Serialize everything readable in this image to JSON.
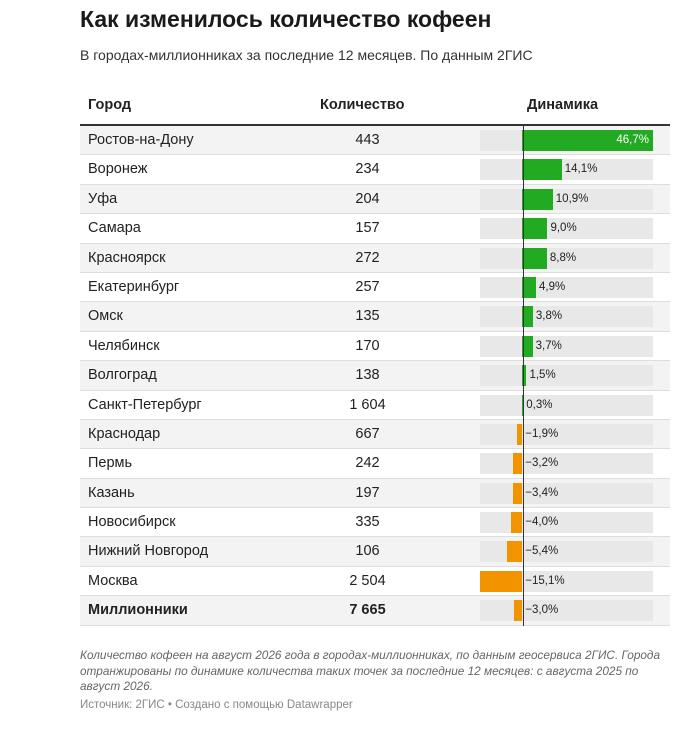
{
  "title": "Как изменилось количество кофеен",
  "subtitle": "В городах-миллионниках за последние 12 месяцев. По данным 2ГИС",
  "headers": {
    "city": "Город",
    "count": "Количество",
    "dynamics": "Динамика"
  },
  "colors": {
    "positive": "#22aa22",
    "negative": "#f29400",
    "track": "#e8e8e8",
    "zebra": "#f3f3f3"
  },
  "chart_data": {
    "type": "table",
    "columns": [
      "Город",
      "Количество",
      "Динамика"
    ],
    "xlim": [
      -15.1,
      46.7
    ],
    "rows": [
      {
        "city": "Ростов-на-Дону",
        "count": "443",
        "value": 46.7,
        "label": "46,7%"
      },
      {
        "city": "Воронеж",
        "count": "234",
        "value": 14.1,
        "label": "14,1%"
      },
      {
        "city": "Уфа",
        "count": "204",
        "value": 10.9,
        "label": "10,9%"
      },
      {
        "city": "Самара",
        "count": "157",
        "value": 9.0,
        "label": "9,0%"
      },
      {
        "city": "Красноярск",
        "count": "272",
        "value": 8.8,
        "label": "8,8%"
      },
      {
        "city": "Екатеринбург",
        "count": "257",
        "value": 4.9,
        "label": "4,9%"
      },
      {
        "city": "Омск",
        "count": "135",
        "value": 3.8,
        "label": "3,8%"
      },
      {
        "city": "Челябинск",
        "count": "170",
        "value": 3.7,
        "label": "3,7%"
      },
      {
        "city": "Волгоград",
        "count": "138",
        "value": 1.5,
        "label": "1,5%"
      },
      {
        "city": "Санкт-Петербург",
        "count": "1 604",
        "value": 0.3,
        "label": "0,3%"
      },
      {
        "city": "Краснодар",
        "count": "667",
        "value": -1.9,
        "label": "−1,9%"
      },
      {
        "city": "Пермь",
        "count": "242",
        "value": -3.2,
        "label": "−3,2%"
      },
      {
        "city": "Казань",
        "count": "197",
        "value": -3.4,
        "label": "−3,4%"
      },
      {
        "city": "Новосибирск",
        "count": "335",
        "value": -4.0,
        "label": "−4,0%"
      },
      {
        "city": "Нижний Новгород",
        "count": "106",
        "value": -5.4,
        "label": "−5,4%"
      },
      {
        "city": "Москва",
        "count": "2 504",
        "value": -15.1,
        "label": "−15,1%"
      },
      {
        "city": "Миллионники",
        "count": "7 665",
        "value": -3.0,
        "label": "−3,0%",
        "total": true
      }
    ]
  },
  "note": "Количество кофеен на август 2026 года в городах-миллионниках, по данным геосервиса 2ГИС. Города отранжированы по динамике количества таких точек за последние 12 месяцев: с августа 2025 по август 2026.",
  "source": "Источник: 2ГИС • Создано с помощью Datawrapper"
}
